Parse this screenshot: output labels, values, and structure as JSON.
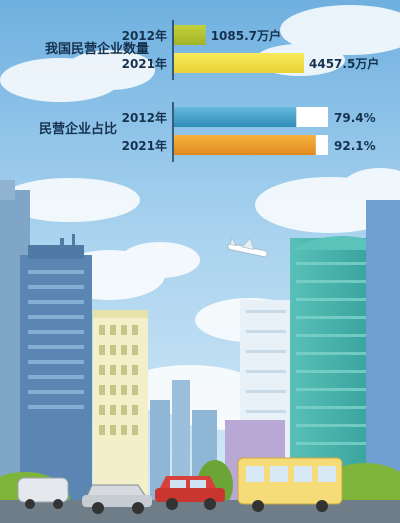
{
  "chart_data": [
    {
      "type": "bar",
      "title": "我国民营企业数量",
      "categories": [
        "2012年",
        "2021年"
      ],
      "values": [
        1085.7,
        4457.5
      ],
      "value_labels": [
        "1085.7万户",
        "4457.5万户"
      ],
      "unit": "万户",
      "colors": [
        "#b5c22f",
        "#f2e04a"
      ]
    },
    {
      "type": "bar",
      "title": "民营企业占比",
      "categories": [
        "2012年",
        "2021年"
      ],
      "values": [
        79.4,
        92.1
      ],
      "value_labels": [
        "79.4%",
        "92.1%"
      ],
      "unit": "%",
      "ylim": [
        0,
        100
      ],
      "colors": [
        "#3f9ec7",
        "#ee9a2c"
      ]
    }
  ]
}
